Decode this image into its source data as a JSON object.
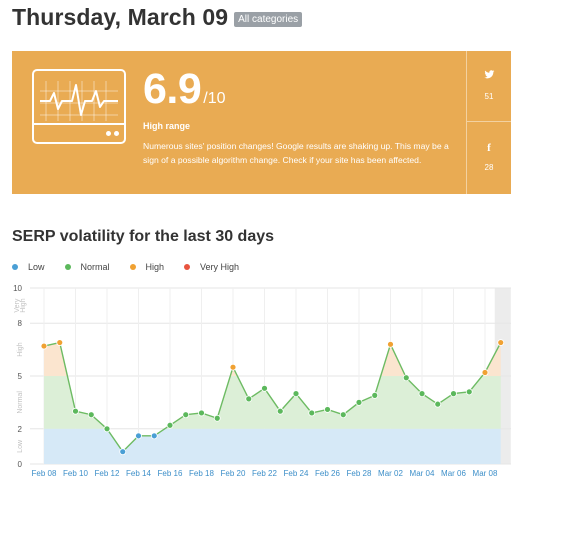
{
  "header": {
    "title": "Thursday, March 09",
    "category_badge": "All categories"
  },
  "banner": {
    "score": "6.9",
    "score_max": "/10",
    "range_label": "High range",
    "description": "Numerous sites' position changes! Google results are shaking up. This may be a sign of a possible algorithm change. Check if your site has been affected.",
    "icon": "heartbeat-monitor-icon",
    "background_color": "#e9ab53",
    "social": [
      {
        "network": "twitter",
        "icon": "twitter-icon",
        "count": "51"
      },
      {
        "network": "facebook",
        "icon": "facebook-icon",
        "count": "28"
      }
    ]
  },
  "section": {
    "title": "SERP volatility for the last 30 days"
  },
  "legend": [
    {
      "label": "Low",
      "color": "#4a9fd5"
    },
    {
      "label": "Normal",
      "color": "#5cb85c"
    },
    {
      "label": "High",
      "color": "#f0a132"
    },
    {
      "label": "Very High",
      "color": "#e8543f"
    }
  ],
  "chart_data": {
    "type": "line",
    "title": "",
    "xlabel": "",
    "ylabel": "",
    "ylim": [
      0,
      10
    ],
    "y_ticks": [
      0,
      2,
      5,
      8,
      10
    ],
    "zones": [
      {
        "label": "Low",
        "from": 0,
        "to": 2
      },
      {
        "label": "Normal",
        "from": 2,
        "to": 5
      },
      {
        "label": "High",
        "from": 5,
        "to": 8
      },
      {
        "label": "Very High",
        "from": 8,
        "to": 10
      }
    ],
    "x_tick_labels": [
      "Feb 08",
      "Feb 10",
      "Feb 12",
      "Feb 14",
      "Feb 16",
      "Feb 18",
      "Feb 20",
      "Feb 22",
      "Feb 24",
      "Feb 26",
      "Feb 28",
      "Mar 02",
      "Mar 04",
      "Mar 06",
      "Mar 08"
    ],
    "series": [
      {
        "x": [
          "Feb 08",
          "Feb 09",
          "Feb 10",
          "Feb 11",
          "Feb 12",
          "Feb 13",
          "Feb 14",
          "Feb 15",
          "Feb 16",
          "Feb 17",
          "Feb 18",
          "Feb 19",
          "Feb 20",
          "Feb 21",
          "Feb 22",
          "Feb 23",
          "Feb 24",
          "Feb 25",
          "Feb 26",
          "Feb 27",
          "Feb 28",
          "Mar 01",
          "Mar 02",
          "Mar 03",
          "Mar 04",
          "Mar 05",
          "Mar 06",
          "Mar 07",
          "Mar 08",
          "Mar 09"
        ],
        "values": [
          6.7,
          6.9,
          3.0,
          2.8,
          2.0,
          0.7,
          1.6,
          1.6,
          2.2,
          2.8,
          2.9,
          2.6,
          5.5,
          3.7,
          4.3,
          3.0,
          4.0,
          2.9,
          3.1,
          2.8,
          3.5,
          3.9,
          6.8,
          4.9,
          4.0,
          3.4,
          4.0,
          4.1,
          5.2,
          6.9
        ],
        "colors": [
          "#f0a132",
          "#f0a132",
          "#5cb85c",
          "#5cb85c",
          "#5cb85c",
          "#4a9fd5",
          "#4a9fd5",
          "#4a9fd5",
          "#5cb85c",
          "#5cb85c",
          "#5cb85c",
          "#5cb85c",
          "#f0a132",
          "#5cb85c",
          "#5cb85c",
          "#5cb85c",
          "#5cb85c",
          "#5cb85c",
          "#5cb85c",
          "#5cb85c",
          "#5cb85c",
          "#5cb85c",
          "#f0a132",
          "#5cb85c",
          "#5cb85c",
          "#5cb85c",
          "#5cb85c",
          "#5cb85c",
          "#f0a132",
          "#f0a132"
        ]
      }
    ],
    "grid": true,
    "legend_position": "top-left",
    "highlight_last_day": true
  }
}
